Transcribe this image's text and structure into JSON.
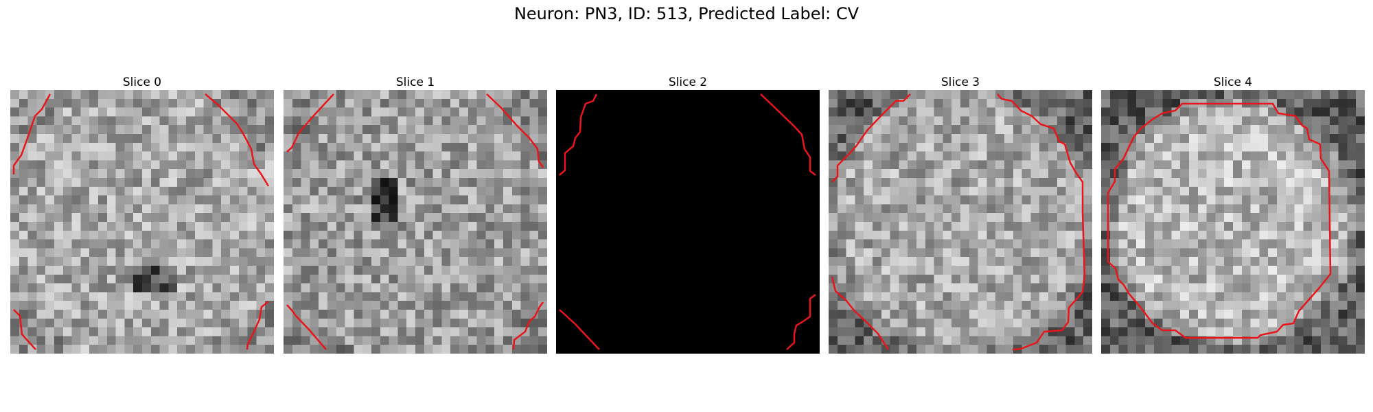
{
  "figure": {
    "title": "Neuron: PN3, ID: 513, Predicted Label: CV"
  },
  "slices": [
    {
      "title": "Slice 0",
      "blank": false,
      "center_brightness": 0.66,
      "rim": "corners"
    },
    {
      "title": "Slice 1",
      "blank": false,
      "center_brightness": 0.62,
      "rim": "corners"
    },
    {
      "title": "Slice 2",
      "blank": true,
      "center_brightness": 0.0,
      "rim": "none"
    },
    {
      "title": "Slice 3",
      "blank": false,
      "center_brightness": 0.66,
      "rim": "ring-partial"
    },
    {
      "title": "Slice 4",
      "blank": false,
      "center_brightness": 0.72,
      "rim": "ring-full"
    }
  ],
  "colors": {
    "contour": "#e8161b",
    "background": "#ffffff"
  }
}
